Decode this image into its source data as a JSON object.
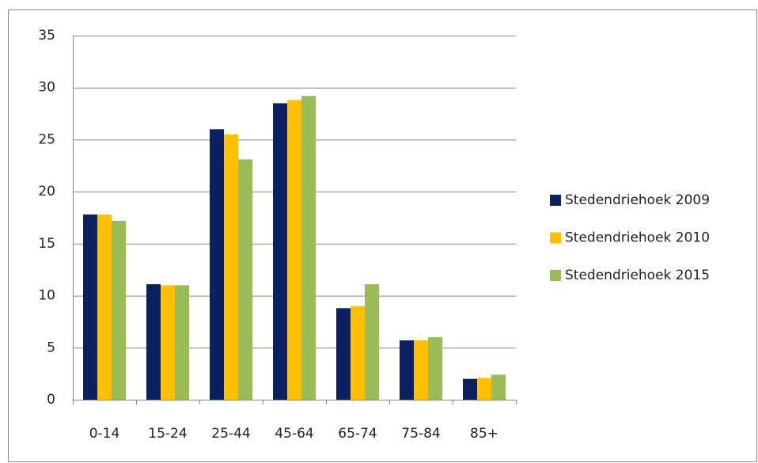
{
  "chart_data": {
    "type": "bar",
    "categories": [
      "0-14",
      "15-24",
      "25-44",
      "45-64",
      "65-74",
      "75-84",
      "85+"
    ],
    "series": [
      {
        "name": "Stedendriehoek 2009",
        "color": "#0c1f5e",
        "values": [
          17.8,
          11.1,
          26.0,
          28.5,
          8.8,
          5.7,
          2.0
        ]
      },
      {
        "name": "Stedendriehoek 2010",
        "color": "#ffc000",
        "values": [
          17.8,
          11.0,
          25.5,
          28.8,
          9.0,
          5.7,
          2.1
        ]
      },
      {
        "name": "Stedendriehoek 2015",
        "color": "#9bbb59",
        "values": [
          17.2,
          11.0,
          23.1,
          29.2,
          11.1,
          6.0,
          2.4
        ]
      }
    ],
    "ylim": [
      0,
      35
    ],
    "yticks": [
      0,
      5,
      10,
      15,
      20,
      25,
      30,
      35
    ],
    "grid": true,
    "legend": "right"
  }
}
